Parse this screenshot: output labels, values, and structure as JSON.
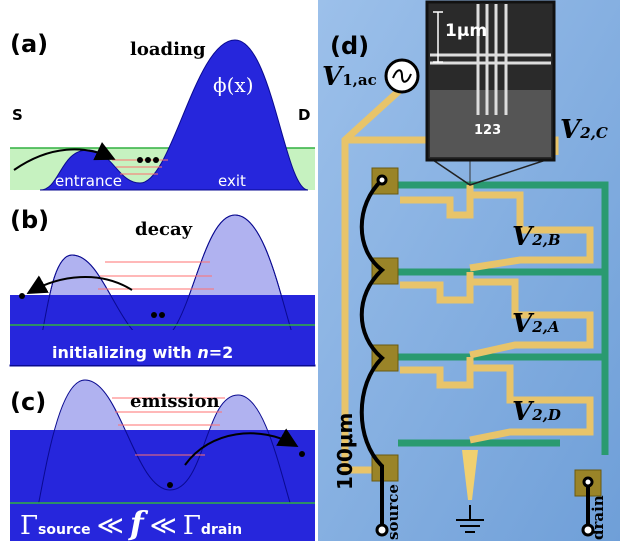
{
  "panel_a": {
    "label": "(a)",
    "title": "loading",
    "potential": "ϕ(x)",
    "source": "S",
    "drain": "D",
    "entrance": "entrance",
    "exit": "exit"
  },
  "panel_b": {
    "label": "(b)",
    "title": "decay",
    "caption": {
      "text": "initializing with ",
      "n": "n",
      "rest": "=2"
    }
  },
  "panel_c": {
    "label": "(c)",
    "title": "emission",
    "relation": {
      "gamma1": "Γ",
      "sub1": "source",
      "rel1": "≪",
      "f": "f",
      "rel2": "≪",
      "gamma2": "Γ",
      "sub2": "drain"
    }
  },
  "panel_d": {
    "label": "(d)",
    "v1": {
      "v": "V",
      "sub": "1,ac"
    },
    "scale_inset": "1μm",
    "gates": "123",
    "v2c": {
      "v": "V",
      "sub": "2,C"
    },
    "v2b": {
      "v": "V",
      "sub": "2,B"
    },
    "v2a": {
      "v": "V",
      "sub": "2,A"
    },
    "v2d": {
      "v": "V",
      "sub": "2,D"
    },
    "scale": "100μm",
    "source": "source",
    "drain": "drain"
  }
}
